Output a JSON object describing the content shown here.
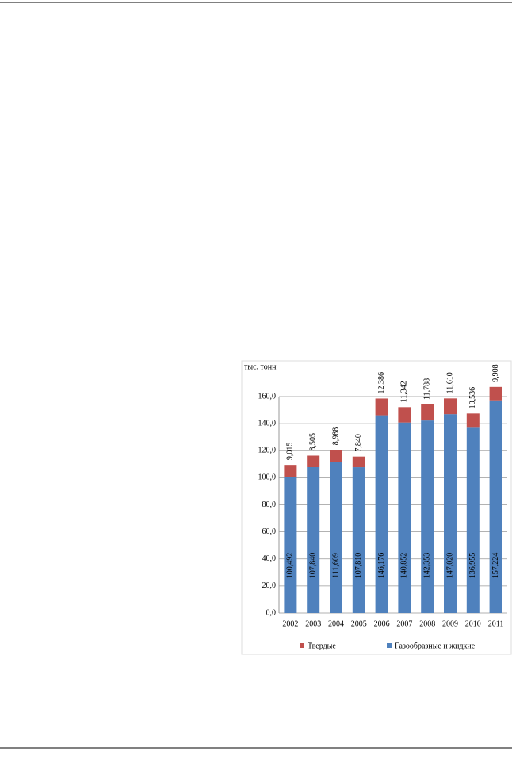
{
  "chart_data": {
    "type": "stacked-bar",
    "y_label": "тыс. тонн",
    "categories": [
      "2002",
      "2003",
      "2004",
      "2005",
      "2006",
      "2007",
      "2008",
      "2009",
      "2010",
      "2011"
    ],
    "series": [
      {
        "name": "Твердые",
        "color": "#c0504d",
        "values": [
          9.015,
          8.505,
          8.988,
          7.84,
          12.386,
          11.342,
          11.788,
          11.61,
          10.536,
          9.908
        ],
        "value_labels": [
          "9,015",
          "8,505",
          "8,988",
          "7,840",
          "12,386",
          "11,342",
          "11,788",
          "11,610",
          "10,536",
          "9,908"
        ]
      },
      {
        "name": "Газообразные и жидкие",
        "color": "#4f81bd",
        "values": [
          100.492,
          107.84,
          111.609,
          107.81,
          146.176,
          140.852,
          142.353,
          147.02,
          136.955,
          157.224
        ],
        "value_labels": [
          "100,492",
          "107,840",
          "111,609",
          "107,810",
          "146,176",
          "140,852",
          "142,353",
          "147,020",
          "136,955",
          "157,224"
        ]
      }
    ],
    "ylim": [
      0,
      160
    ],
    "yticks": [
      {
        "value": 0,
        "label": "0,0"
      },
      {
        "value": 20,
        "label": "20,0"
      },
      {
        "value": 40,
        "label": "40,0"
      },
      {
        "value": 60,
        "label": "60,0"
      },
      {
        "value": 80,
        "label": "80,0"
      },
      {
        "value": 100,
        "label": "100,0"
      },
      {
        "value": 120,
        "label": "120,0"
      },
      {
        "value": 140,
        "label": "140,0"
      },
      {
        "value": 160,
        "label": "160,0"
      }
    ],
    "grid": true
  }
}
